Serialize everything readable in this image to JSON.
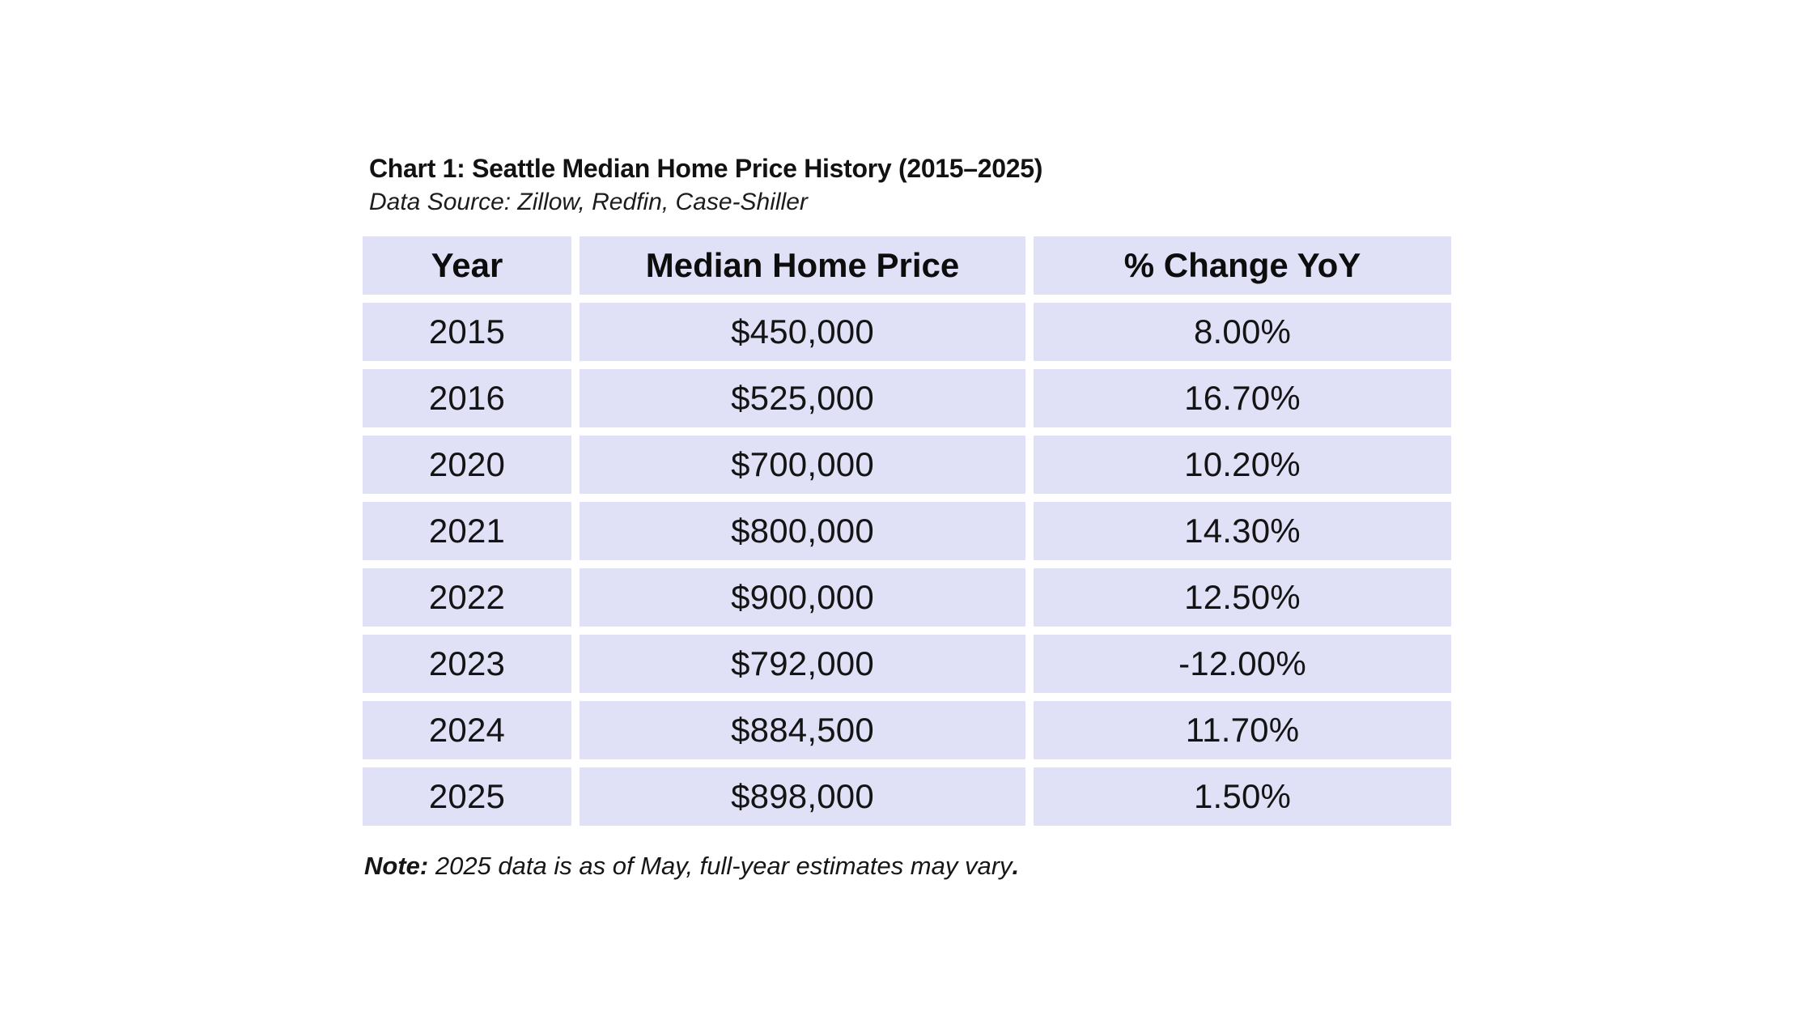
{
  "title": "Chart 1: Seattle Median Home Price History (2015–2025)",
  "subtitle": "Data Source: Zillow, Redfin, Case-Shiller",
  "table": {
    "columns": [
      "Year",
      "Median Home Price",
      "% Change YoY"
    ],
    "rows": [
      {
        "year": "2015",
        "price": "$450,000",
        "change": "8.00%"
      },
      {
        "year": "2016",
        "price": "$525,000",
        "change": "16.70%"
      },
      {
        "year": "2020",
        "price": "$700,000",
        "change": "10.20%"
      },
      {
        "year": "2021",
        "price": "$800,000",
        "change": "14.30%"
      },
      {
        "year": "2022",
        "price": "$900,000",
        "change": "12.50%"
      },
      {
        "year": "2023",
        "price": "$792,000",
        "change": "-12.00%"
      },
      {
        "year": "2024",
        "price": "$884,500",
        "change": "11.70%"
      },
      {
        "year": "2025",
        "price": "$898,000",
        "change": "1.50%"
      }
    ]
  },
  "note": {
    "label": "Note:",
    "text": " 2025 data is as of May, full-year estimates may vary",
    "period": "."
  },
  "colors": {
    "cell_background": "#e0e0f7",
    "text": "#141414",
    "page_background": "#ffffff"
  },
  "chart_data": {
    "type": "table",
    "title": "Chart 1: Seattle Median Home Price History (2015–2025)",
    "subtitle": "Data Source: Zillow, Redfin, Case-Shiller",
    "columns": [
      "Year",
      "Median Home Price",
      "% Change YoY"
    ],
    "years": [
      2015,
      2016,
      2020,
      2021,
      2022,
      2023,
      2024,
      2025
    ],
    "median_home_price_usd": [
      450000,
      525000,
      700000,
      800000,
      900000,
      792000,
      884500,
      898000
    ],
    "pct_change_yoy": [
      8.0,
      16.7,
      10.2,
      14.3,
      12.5,
      -12.0,
      11.7,
      1.5
    ],
    "note": "Note: 2025 data is as of May, full-year estimates may vary.",
    "legend_position": "none",
    "grid": false
  }
}
